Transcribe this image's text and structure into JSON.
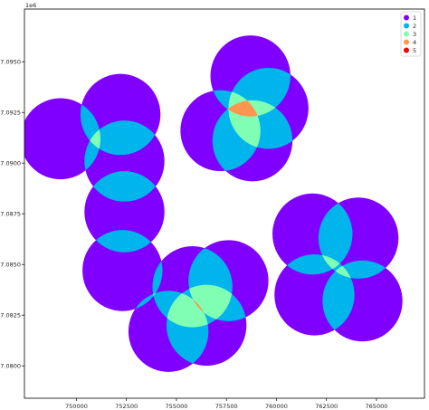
{
  "chart_data": {
    "type": "geo-overlap-map",
    "title": "",
    "xlabel": "",
    "ylabel": "",
    "y_offset_text": "1e6",
    "xlim": [
      747400,
      767400
    ],
    "ylim": [
      7078400,
      7097600
    ],
    "xticks": [
      750000,
      752500,
      755000,
      757500,
      760000,
      762500,
      765000
    ],
    "xtick_labels": [
      "750000",
      "752500",
      "755000",
      "757500",
      "760000",
      "762500",
      "765000"
    ],
    "yticks": [
      7080000,
      7082500,
      7085000,
      7087500,
      7090000,
      7092500,
      7095000
    ],
    "ytick_labels": [
      "7.0800",
      "7.0825",
      "7.0850",
      "7.0875",
      "7.0900",
      "7.0925",
      "7.0950"
    ],
    "legend": {
      "placement": "top-right",
      "entries": [
        {
          "label": "1",
          "color": "#8000ff"
        },
        {
          "label": "2",
          "color": "#00b5eb"
        },
        {
          "label": "3",
          "color": "#80ffb4"
        },
        {
          "label": "4",
          "color": "#ff964f"
        },
        {
          "label": "5",
          "color": "#ff0000"
        }
      ]
    },
    "circle_radius": 2000,
    "circles": [
      {
        "x": 749200,
        "y": 7091200
      },
      {
        "x": 752200,
        "y": 7092400
      },
      {
        "x": 752400,
        "y": 7090100
      },
      {
        "x": 752400,
        "y": 7087600
      },
      {
        "x": 752300,
        "y": 7084700
      },
      {
        "x": 755800,
        "y": 7083900
      },
      {
        "x": 757600,
        "y": 7084200
      },
      {
        "x": 754600,
        "y": 7081700
      },
      {
        "x": 756500,
        "y": 7082000
      },
      {
        "x": 758700,
        "y": 7094300
      },
      {
        "x": 759600,
        "y": 7092700
      },
      {
        "x": 757200,
        "y": 7091600
      },
      {
        "x": 758800,
        "y": 7091100
      },
      {
        "x": 761800,
        "y": 7086500
      },
      {
        "x": 764100,
        "y": 7086300
      },
      {
        "x": 761900,
        "y": 7083500
      },
      {
        "x": 764300,
        "y": 7083200
      }
    ]
  }
}
